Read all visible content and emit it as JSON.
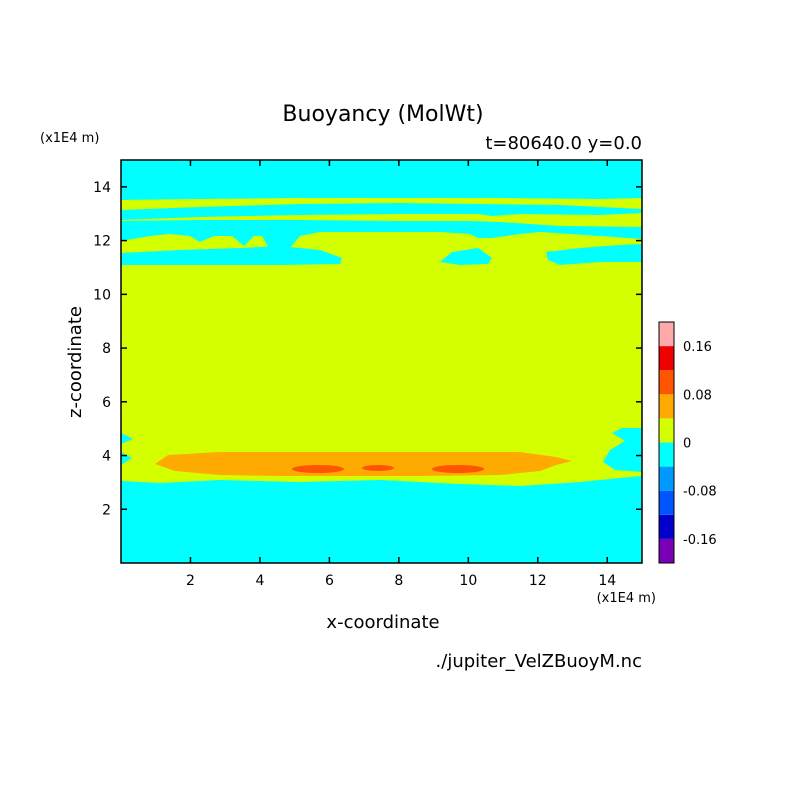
{
  "chart_data": {
    "type": "heatmap",
    "title": "Buoyancy (MolWt)",
    "subtitle": "t=80640.0 y=0.0",
    "xlabel": "x-coordinate",
    "ylabel": "z-coordinate",
    "x_scale_label": "(x1E4 m)",
    "y_scale_label": "(x1E4 m)",
    "source_label": "./jupiter_VelZBuoyM.nc",
    "xlim": [
      0,
      15
    ],
    "ylim": [
      0,
      15
    ],
    "x_ticks": [
      2,
      4,
      6,
      8,
      10,
      12,
      14
    ],
    "y_ticks": [
      2,
      4,
      6,
      8,
      10,
      12,
      14
    ],
    "colorbar": {
      "levels": [
        -0.2,
        -0.16,
        -0.12,
        -0.08,
        -0.04,
        0,
        0.04,
        0.08,
        0.12,
        0.16,
        0.2
      ],
      "colors": [
        "#7a00b8",
        "#0000cc",
        "#0055ff",
        "#0099ff",
        "#00ffff",
        "#d4ff00",
        "#ffaa00",
        "#ff5500",
        "#ee0000",
        "#ffaaaa"
      ],
      "tick_labels": [
        "0.16",
        "0.08",
        "0",
        "-0.08",
        "-0.16"
      ],
      "tick_values": [
        0.16,
        0.08,
        0,
        -0.08,
        -0.16
      ]
    },
    "regions": [
      {
        "level": "-0.04 to 0",
        "description": "lower layer",
        "x_range": [
          0,
          15
        ],
        "z_range": [
          0,
          3.0
        ]
      },
      {
        "level": "0 to 0.04",
        "description": "middle layer",
        "x_range": [
          0,
          15
        ],
        "z_range": [
          3.0,
          11.5
        ]
      },
      {
        "level": "0.04 to 0.08",
        "description": "positive band",
        "x_range": [
          1.0,
          13.0
        ],
        "z_range": [
          3.2,
          4.2
        ]
      },
      {
        "level": "0.08 to 0.12",
        "description": "maxima",
        "x_centers": [
          5.8,
          7.3,
          9.5
        ],
        "z": 3.5
      },
      {
        "level": "-0.04 to 0",
        "description": "upper bands",
        "z_ranges": [
          [
            11.2,
            12.2
          ],
          [
            12.6,
            13.2
          ],
          [
            13.7,
            14.8
          ]
        ]
      }
    ]
  }
}
